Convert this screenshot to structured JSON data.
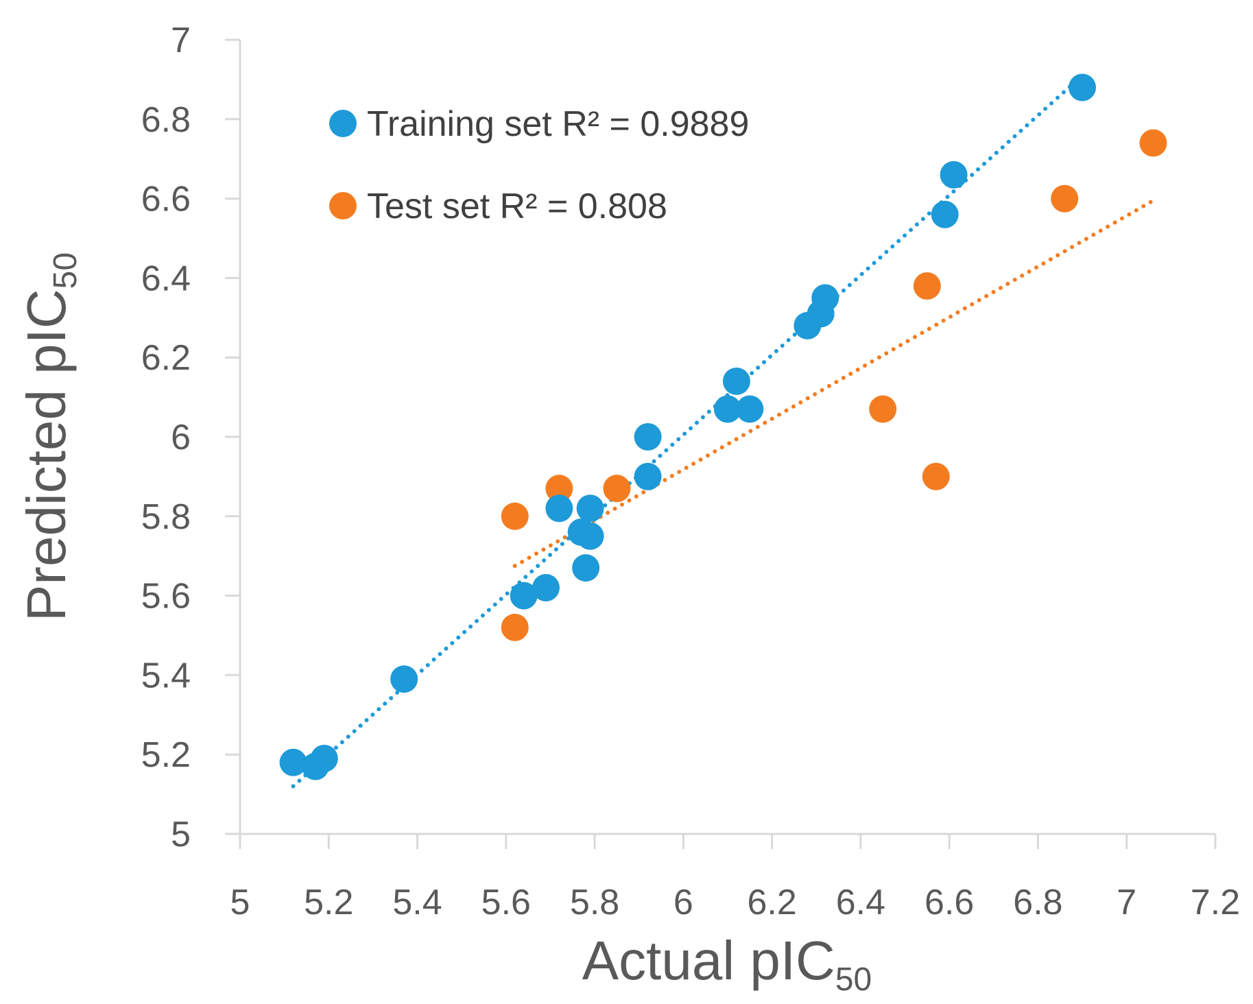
{
  "chart_data": {
    "type": "scatter",
    "title": "",
    "xlabel": "Actual pIC",
    "xlabel_sub": "50",
    "ylabel": "Predicted pIC",
    "ylabel_sub": "50",
    "xlim": [
      5,
      7.2
    ],
    "ylim": [
      5,
      7
    ],
    "x_ticks": [
      "5",
      "5.2",
      "5.4",
      "5.6",
      "5.8",
      "6",
      "6.2",
      "6.4",
      "6.6",
      "6.8",
      "7",
      "7.2"
    ],
    "y_ticks": [
      "5",
      "5.2",
      "5.4",
      "5.6",
      "5.8",
      "6",
      "6.2",
      "6.4",
      "6.6",
      "6.8",
      "7"
    ],
    "grid": false,
    "legend_position": "top-left",
    "series": [
      {
        "name": "Training set R² = 0.9889",
        "color": "#1E9AD8",
        "points": [
          [
            5.12,
            5.18
          ],
          [
            5.17,
            5.17
          ],
          [
            5.19,
            5.19
          ],
          [
            5.37,
            5.39
          ],
          [
            5.64,
            5.6
          ],
          [
            5.69,
            5.62
          ],
          [
            5.72,
            5.82
          ],
          [
            5.77,
            5.76
          ],
          [
            5.78,
            5.67
          ],
          [
            5.79,
            5.75
          ],
          [
            5.79,
            5.82
          ],
          [
            5.92,
            5.9
          ],
          [
            5.92,
            6.0
          ],
          [
            6.1,
            6.07
          ],
          [
            6.12,
            6.14
          ],
          [
            6.15,
            6.07
          ],
          [
            6.28,
            6.28
          ],
          [
            6.31,
            6.31
          ],
          [
            6.32,
            6.35
          ],
          [
            6.59,
            6.56
          ],
          [
            6.61,
            6.66
          ],
          [
            6.9,
            6.88
          ]
        ],
        "trendline": {
          "x": [
            5.12,
            6.88
          ],
          "y": [
            5.12,
            6.89
          ]
        }
      },
      {
        "name": "Test set R² = 0.808",
        "color": "#F47C20",
        "points": [
          [
            5.62,
            5.8
          ],
          [
            5.62,
            5.52
          ],
          [
            5.72,
            5.87
          ],
          [
            5.85,
            5.87
          ],
          [
            6.45,
            6.07
          ],
          [
            6.55,
            6.38
          ],
          [
            6.57,
            5.9
          ],
          [
            6.86,
            6.6
          ],
          [
            7.06,
            6.74
          ]
        ],
        "trendline": {
          "x": [
            5.62,
            7.06
          ],
          "y": [
            5.675,
            6.595
          ]
        }
      }
    ]
  }
}
